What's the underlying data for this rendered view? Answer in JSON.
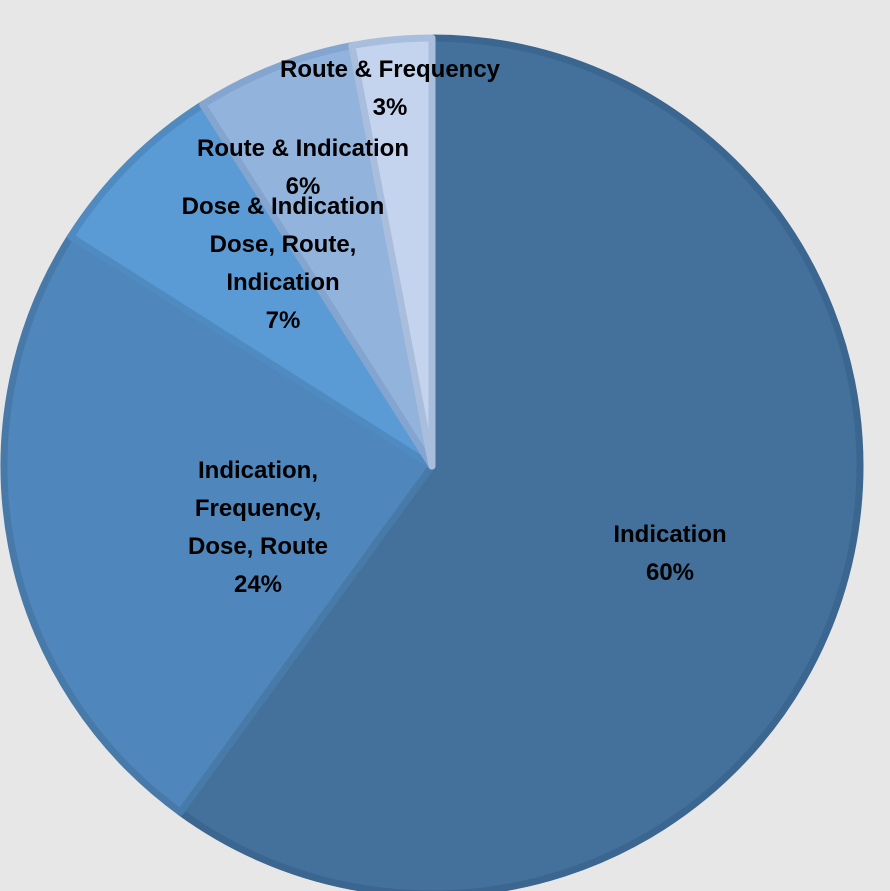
{
  "chart_data": {
    "type": "pie",
    "title": "",
    "start_angle_deg": 0,
    "direction": "clockwise",
    "slices": [
      {
        "label_lines": [
          "Indication"
        ],
        "percent_label": "60%",
        "value": 60,
        "color": "#43719b",
        "stroke": "#3b6690"
      },
      {
        "label_lines": [
          "Indication,",
          "Frequency,",
          "Dose, Route"
        ],
        "percent_label": "24%",
        "value": 24,
        "color": "#4f86bb",
        "stroke": "#477aa9"
      },
      {
        "label_lines": [
          "Dose & Indication",
          "Dose, Route,",
          "Indication"
        ],
        "percent_label": "7%",
        "value": 7,
        "color": "#5a9bd5",
        "stroke": "#4f8bc1"
      },
      {
        "label_lines": [
          "Route & Indication"
        ],
        "percent_label": "6%",
        "value": 6,
        "color": "#92b3dc",
        "stroke": "#84a5cf"
      },
      {
        "label_lines": [
          "Route & Frequency"
        ],
        "percent_label": "3%",
        "value": 3,
        "color": "#c5d4ee",
        "stroke": "#a9bddc"
      }
    ]
  }
}
